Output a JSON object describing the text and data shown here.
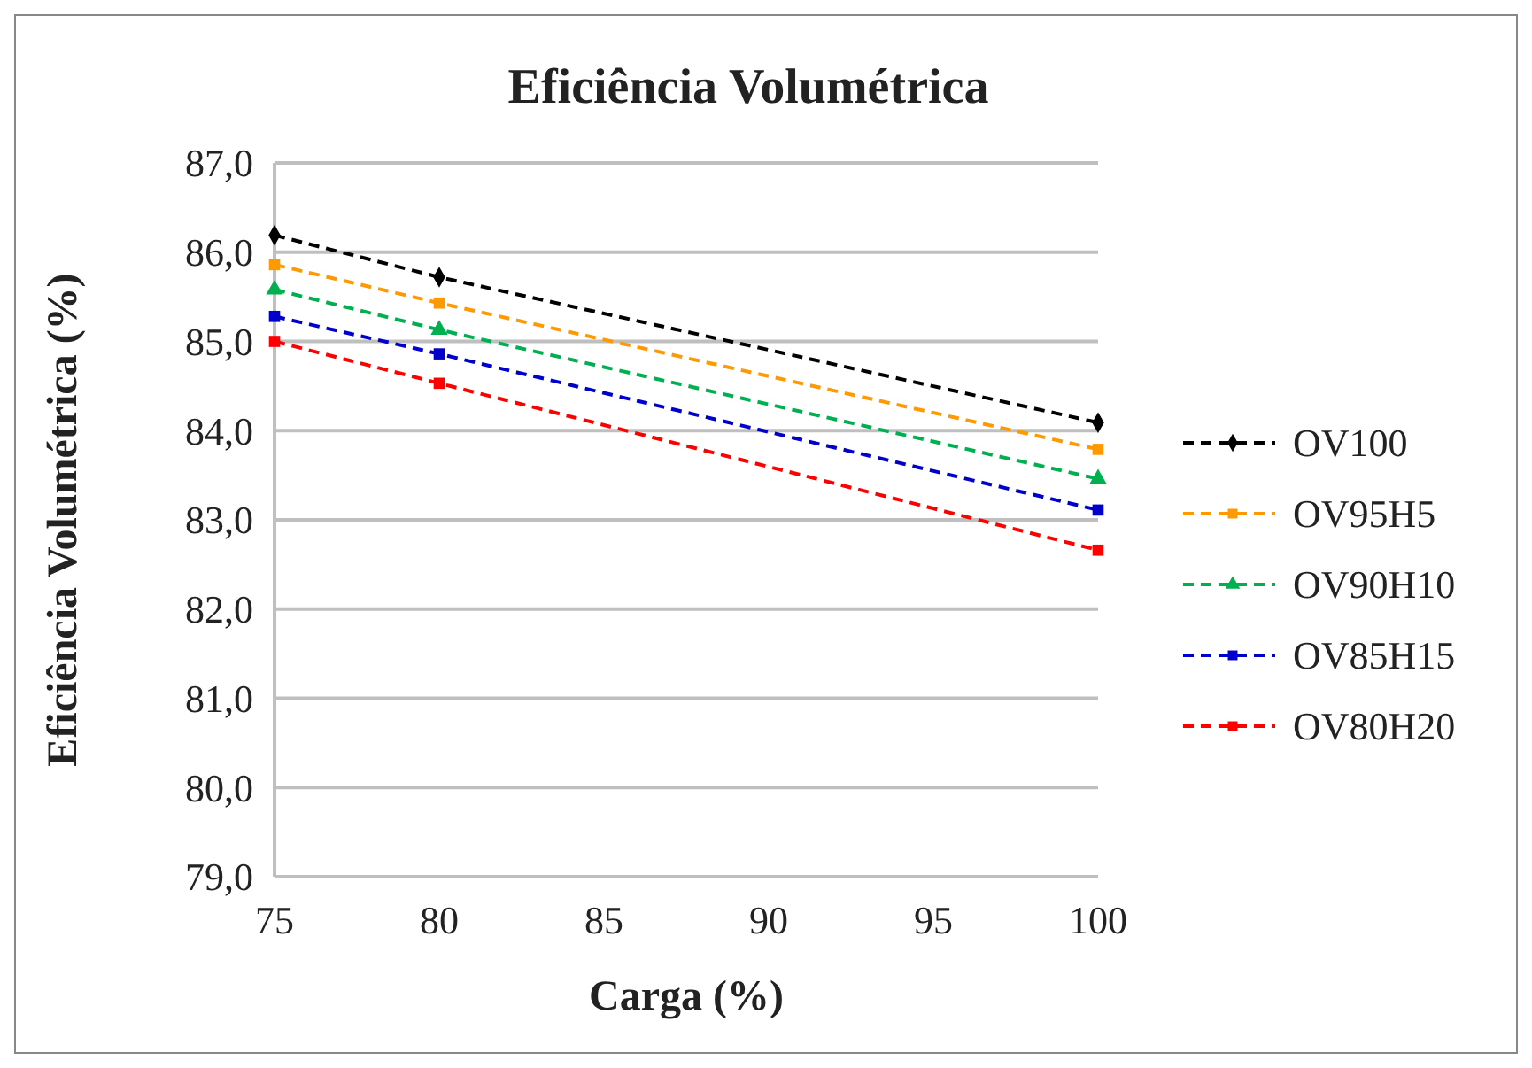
{
  "chart_data": {
    "type": "line",
    "title": "Eficiência Volumétrica",
    "xlabel": "Carga (%)",
    "ylabel": "Eficiência Volumétrica  (%)",
    "x": [
      75,
      80,
      100
    ],
    "series": [
      {
        "name": "OV100",
        "color": "#000000",
        "marker": "diamond",
        "values": [
          86.19,
          85.72,
          84.09
        ]
      },
      {
        "name": "OV95H5",
        "color": "#ff9900",
        "marker": "square",
        "values": [
          85.86,
          85.43,
          83.79
        ]
      },
      {
        "name": "OV90H10",
        "color": "#00b050",
        "marker": "triangle",
        "values": [
          85.58,
          85.13,
          83.46
        ]
      },
      {
        "name": "OV85H15",
        "color": "#0000cc",
        "marker": "square",
        "values": [
          85.28,
          84.86,
          83.11
        ]
      },
      {
        "name": "OV80H20",
        "color": "#ff0000",
        "marker": "square",
        "values": [
          85.0,
          84.53,
          82.66
        ]
      }
    ],
    "xlim": [
      75,
      100
    ],
    "xticks": [
      75,
      80,
      85,
      90,
      95,
      100
    ],
    "ylim": [
      79,
      87
    ],
    "yticks": [
      {
        "value": 79,
        "label": "79,0"
      },
      {
        "value": 80,
        "label": "80,0"
      },
      {
        "value": 81,
        "label": "81,0"
      },
      {
        "value": 82,
        "label": "82,0"
      },
      {
        "value": 83,
        "label": "83,0"
      },
      {
        "value": 84,
        "label": "84,0"
      },
      {
        "value": 85,
        "label": "85,0"
      },
      {
        "value": 86,
        "label": "86,0"
      },
      {
        "value": 87,
        "label": "87,0"
      }
    ],
    "grid": "y",
    "legend": "right",
    "line_style": "dashed"
  }
}
